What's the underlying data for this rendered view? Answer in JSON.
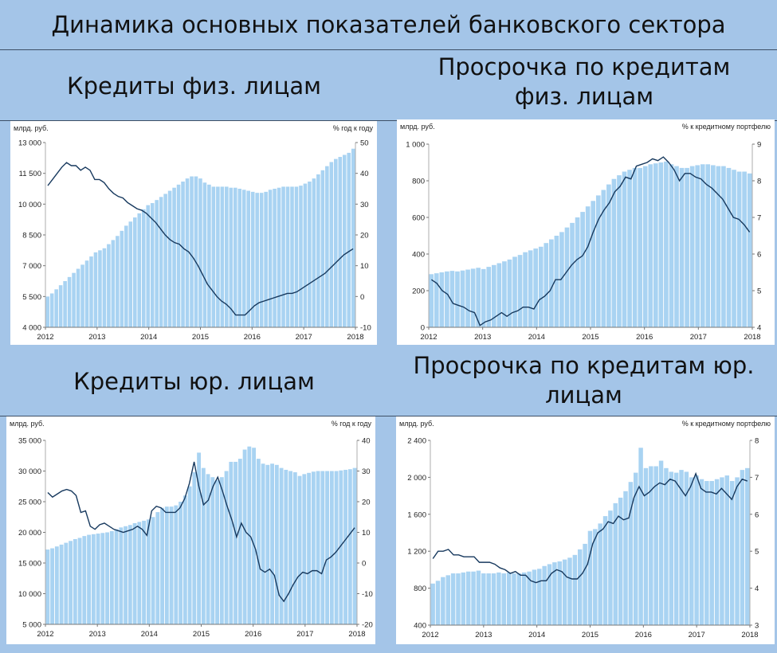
{
  "page": {
    "title": "Динамика основных показателей банковского сектора",
    "sections": [
      {
        "title": "Кредиты физ. лицам"
      },
      {
        "title": "Просрочка по кредитам физ. лицам"
      },
      {
        "title": "Кредиты юр. лицам"
      },
      {
        "title": "Просрочка по кредитам юр. лицам"
      }
    ]
  },
  "colors": {
    "bars": "#a9d3f2",
    "line": "#17395e",
    "background": "#a4c5e8"
  },
  "chart_data": [
    {
      "type": "bar",
      "title": "Кредиты физ. лицам",
      "left_unit": "млрд. руб.",
      "right_unit": "% год к году",
      "left_ticks": [
        "4 000",
        "5 500",
        "7 000",
        "8 500",
        "10 000",
        "11 500",
        "13 000"
      ],
      "right_ticks": [
        "-10",
        "0",
        "10",
        "20",
        "30",
        "40",
        "50"
      ],
      "ylim_left": [
        4000,
        13000
      ],
      "ylim_right": [
        -10,
        50
      ],
      "x_ticks": [
        "2012",
        "2013",
        "2014",
        "2015",
        "2016",
        "2017",
        "2018"
      ],
      "series": [
        {
          "name": "",
          "axis": "left",
          "kind": "bar",
          "values": [
            5500,
            5650,
            5850,
            6050,
            6250,
            6450,
            6650,
            6850,
            7050,
            7250,
            7450,
            7650,
            7750,
            7850,
            8050,
            8250,
            8450,
            8700,
            8950,
            9150,
            9350,
            9550,
            9750,
            9950,
            10050,
            10200,
            10350,
            10500,
            10650,
            10800,
            10950,
            11100,
            11250,
            11350,
            11350,
            11250,
            11050,
            10950,
            10850,
            10850,
            10850,
            10850,
            10800,
            10800,
            10750,
            10700,
            10650,
            10600,
            10550,
            10550,
            10600,
            10700,
            10750,
            10800,
            10850,
            10850,
            10850,
            10850,
            10900,
            11000,
            11100,
            11250,
            11450,
            11650,
            11850,
            12050,
            12200,
            12300,
            12400,
            12500,
            12700
          ]
        },
        {
          "name": "",
          "axis": "right",
          "kind": "line",
          "values": [
            36,
            38,
            40,
            42,
            43.5,
            42.5,
            42.5,
            41,
            42,
            41,
            38,
            38,
            37,
            35,
            33.5,
            32.5,
            32,
            30.5,
            29.5,
            28.5,
            28,
            27,
            25.5,
            24,
            22,
            20,
            18.5,
            17.5,
            17,
            15.5,
            14.5,
            12.5,
            10,
            7,
            4,
            2,
            0,
            -1.5,
            -2.5,
            -4,
            -6,
            -6,
            -6,
            -4.5,
            -3,
            -2,
            -1.5,
            -1,
            -0.5,
            0,
            0.5,
            1,
            1,
            1.5,
            2.5,
            3.5,
            4.5,
            5.5,
            6.5,
            7.5,
            9,
            10.5,
            12,
            13.5,
            14.5,
            15.5
          ]
        }
      ]
    },
    {
      "type": "bar",
      "title": "Просрочка по кредитам физ. лицам",
      "left_unit": "млрд. руб.",
      "right_unit": "% к кредитному портфелю",
      "left_ticks": [
        "0",
        "200",
        "400",
        "600",
        "800",
        "1 000"
      ],
      "right_ticks": [
        "4",
        "5",
        "6",
        "7",
        "8",
        "9"
      ],
      "ylim_left": [
        0,
        1000
      ],
      "ylim_right": [
        4,
        9
      ],
      "x_ticks": [
        "2012",
        "2013",
        "2014",
        "2015",
        "2016",
        "2017",
        "2018"
      ],
      "series": [
        {
          "name": "",
          "axis": "left",
          "kind": "bar",
          "values": [
            290,
            295,
            300,
            305,
            308,
            305,
            310,
            315,
            320,
            325,
            318,
            330,
            340,
            350,
            360,
            370,
            385,
            395,
            410,
            420,
            430,
            440,
            460,
            480,
            500,
            520,
            545,
            570,
            600,
            630,
            660,
            690,
            720,
            750,
            780,
            810,
            830,
            850,
            860,
            870,
            870,
            880,
            890,
            895,
            900,
            905,
            890,
            880,
            870,
            870,
            880,
            885,
            890,
            890,
            885,
            880,
            880,
            870,
            860,
            850,
            850,
            840
          ]
        },
        {
          "name": "",
          "axis": "right",
          "kind": "line",
          "values": [
            5.3,
            5.2,
            5,
            4.9,
            4.65,
            4.6,
            4.55,
            4.45,
            4.4,
            4.05,
            4.15,
            4.2,
            4.3,
            4.4,
            4.3,
            4.4,
            4.45,
            4.55,
            4.55,
            4.5,
            4.75,
            4.85,
            5,
            5.3,
            5.3,
            5.5,
            5.7,
            5.85,
            5.95,
            6.2,
            6.6,
            6.95,
            7.2,
            7.4,
            7.7,
            7.85,
            8.1,
            8.05,
            8.4,
            8.45,
            8.5,
            8.6,
            8.55,
            8.65,
            8.5,
            8.3,
            8,
            8.2,
            8.2,
            8.1,
            8.05,
            7.9,
            7.8,
            7.65,
            7.5,
            7.25,
            7,
            6.95,
            6.8,
            6.6
          ]
        }
      ]
    },
    {
      "type": "bar",
      "title": "Кредиты юр. лицам",
      "left_unit": "млрд. руб.",
      "right_unit": "% год к году",
      "left_ticks": [
        "5 000",
        "10 000",
        "15 000",
        "20 000",
        "25 000",
        "30 000",
        "35 000"
      ],
      "right_ticks": [
        "-20",
        "-10",
        "0",
        "10",
        "20",
        "30",
        "40"
      ],
      "ylim_left": [
        5000,
        35000
      ],
      "ylim_right": [
        -20,
        40
      ],
      "x_ticks": [
        "2012",
        "2013",
        "2014",
        "2015",
        "2016",
        "2017",
        "2018"
      ],
      "series": [
        {
          "name": "",
          "axis": "left",
          "kind": "bar",
          "values": [
            17200,
            17400,
            17700,
            18000,
            18300,
            18600,
            18900,
            19100,
            19400,
            19600,
            19700,
            19800,
            19900,
            20000,
            20200,
            20500,
            20800,
            21000,
            21200,
            21500,
            21700,
            21900,
            22100,
            22500,
            23300,
            24000,
            24200,
            24200,
            24400,
            25000,
            26000,
            27500,
            29800,
            33000,
            30500,
            29500,
            29000,
            28500,
            29000,
            30000,
            31500,
            31500,
            32000,
            33500,
            34000,
            33800,
            32000,
            31200,
            31000,
            31200,
            31000,
            30500,
            30200,
            30000,
            29800,
            29200,
            29500,
            29700,
            29900,
            30000,
            30000,
            30000,
            30000,
            30000,
            30100,
            30200,
            30300,
            30500
          ]
        },
        {
          "name": "",
          "axis": "right",
          "kind": "line",
          "values": [
            23,
            21.5,
            22.5,
            23.5,
            24,
            23.5,
            22,
            16.5,
            17,
            12,
            11,
            12.5,
            13,
            12,
            11,
            10.5,
            10,
            10.5,
            11,
            12,
            11,
            9,
            17,
            18.5,
            18,
            16.5,
            16.5,
            16.5,
            18,
            21,
            26,
            33,
            25,
            19,
            20.5,
            25,
            28,
            23.5,
            18.5,
            14,
            8.5,
            13,
            10,
            8.5,
            4.5,
            -2,
            -3,
            -2,
            -4,
            -10.5,
            -12.5,
            -10,
            -7,
            -4.5,
            -3,
            -3.5,
            -2.5,
            -2.5,
            -3.5,
            1,
            2,
            3.5,
            5.5,
            7.5,
            9.5,
            11.5
          ]
        }
      ]
    },
    {
      "type": "bar",
      "title": "Просрочка по кредитам юр. лицам",
      "left_unit": "млрд. руб.",
      "right_unit": "% к кредитному портфелю",
      "left_ticks": [
        "400",
        "800",
        "1 200",
        "1 600",
        "2 000",
        "2 400"
      ],
      "right_ticks": [
        "3",
        "4",
        "5",
        "6",
        "7",
        "8"
      ],
      "ylim_left": [
        400,
        2400
      ],
      "ylim_right": [
        3,
        8
      ],
      "x_ticks": [
        "2012",
        "2013",
        "2014",
        "2015",
        "2016",
        "2017",
        "2018"
      ],
      "series": [
        {
          "name": "",
          "axis": "left",
          "kind": "bar",
          "values": [
            850,
            880,
            920,
            940,
            960,
            960,
            970,
            980,
            980,
            990,
            960,
            960,
            960,
            970,
            960,
            970,
            960,
            960,
            970,
            980,
            1000,
            1010,
            1040,
            1060,
            1080,
            1090,
            1110,
            1130,
            1160,
            1220,
            1280,
            1420,
            1440,
            1500,
            1580,
            1640,
            1720,
            1780,
            1850,
            1950,
            2050,
            2320,
            2100,
            2120,
            2120,
            2180,
            2100,
            2060,
            2050,
            2080,
            2060,
            2000,
            2020,
            1980,
            1960,
            1960,
            1980,
            2000,
            2020,
            1960,
            2000,
            2080,
            2100
          ]
        },
        {
          "name": "",
          "axis": "right",
          "kind": "line",
          "values": [
            4.8,
            5,
            5,
            5.05,
            4.9,
            4.9,
            4.85,
            4.85,
            4.85,
            4.7,
            4.7,
            4.7,
            4.65,
            4.55,
            4.5,
            4.4,
            4.45,
            4.35,
            4.35,
            4.2,
            4.15,
            4.2,
            4.2,
            4.4,
            4.5,
            4.45,
            4.3,
            4.25,
            4.25,
            4.4,
            4.65,
            5.2,
            5.5,
            5.6,
            5.8,
            5.75,
            5.95,
            5.85,
            5.9,
            6.45,
            6.75,
            6.5,
            6.6,
            6.75,
            6.85,
            6.8,
            6.95,
            6.9,
            6.7,
            6.5,
            6.75,
            7.1,
            6.7,
            6.6,
            6.6,
            6.55,
            6.7,
            6.55,
            6.4,
            6.75,
            6.95,
            6.9
          ]
        }
      ]
    }
  ]
}
